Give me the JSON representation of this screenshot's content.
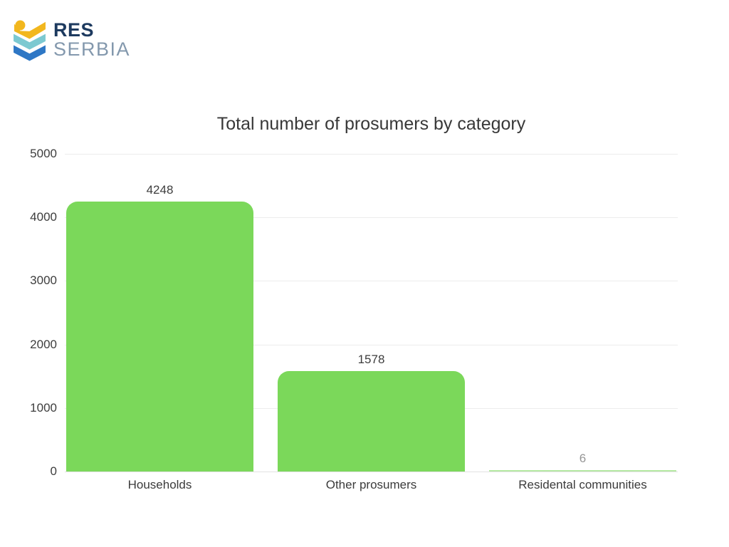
{
  "logo": {
    "line1": "RES",
    "line2": "SERBIA",
    "colors": {
      "head_circle": "#f2b71e",
      "chevron_top": "#f2b71e",
      "chevron_middle": "#7cc9d1",
      "chevron_bottom": "#2e77c5",
      "text_primary": "#1d3a5f",
      "text_secondary": "#8398ad"
    }
  },
  "chart_data": {
    "type": "bar",
    "title": "Total number of prosumers by category",
    "categories": [
      "Households",
      "Other prosumers",
      "Residental communities"
    ],
    "values": [
      4248,
      1578,
      6
    ],
    "data_labels": [
      "4248",
      "1578",
      "6"
    ],
    "xlabel": "",
    "ylabel": "",
    "ylim": [
      0,
      5000
    ],
    "yticks": [
      0,
      1000,
      2000,
      3000,
      4000,
      5000
    ],
    "grid": "horizontal",
    "legend": "none",
    "bar_color": "#7bd85a",
    "grid_color": "#ececec",
    "text_color": "#3d3d3d"
  }
}
